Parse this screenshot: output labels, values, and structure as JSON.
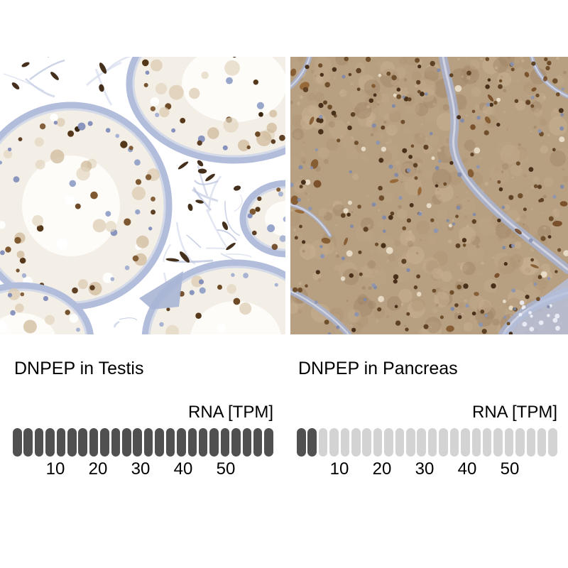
{
  "page": {
    "background": "#ffffff"
  },
  "panels": [
    {
      "id": "testis",
      "title": "DNPEP in Testis",
      "unit_label": "RNA [TPM]",
      "rna_bar": {
        "segments_total": 24,
        "segments_filled": 24,
        "ticks": [
          10,
          20,
          30,
          40,
          50
        ]
      },
      "micrograph_description": "Immunohistochemistry of testis: seminiferous tubule cross-sections with pale blue basement membranes, blue and brown-stained nuclei on a white background"
    },
    {
      "id": "pancreas",
      "title": "DNPEP in Pancreas",
      "unit_label": "RNA [TPM]",
      "rna_bar": {
        "segments_total": 24,
        "segments_filled": 2,
        "ticks": [
          10,
          20,
          30,
          40,
          50
        ]
      },
      "micrograph_description": "Immunohistochemistry of pancreas: dense exocrine tissue with moderate brown cytoplasmic staining, dark brown nuclei and pale blue connective septa"
    }
  ],
  "chart_data": [
    {
      "type": "bar",
      "style": "segmented-pill-meter",
      "title": "DNPEP in Testis",
      "value_axis_label": "RNA [TPM]",
      "x_ticks": [
        10,
        20,
        30,
        40,
        50
      ],
      "x_range": [
        0,
        60
      ],
      "segments_total": 24,
      "segments_filled": 24,
      "tpm_per_segment": 2.5,
      "estimated_value_tpm": 60,
      "filled_color": "#505050",
      "empty_color": "#d3d3d3"
    },
    {
      "type": "bar",
      "style": "segmented-pill-meter",
      "title": "DNPEP in Pancreas",
      "value_axis_label": "RNA [TPM]",
      "x_ticks": [
        10,
        20,
        30,
        40,
        50
      ],
      "x_range": [
        0,
        60
      ],
      "segments_total": 24,
      "segments_filled": 2,
      "tpm_per_segment": 2.5,
      "estimated_value_tpm": 5,
      "filled_color": "#505050",
      "empty_color": "#d3d3d3"
    }
  ],
  "colors": {
    "text": "#000000",
    "segment_filled": "#505050",
    "segment_empty": "#d3d3d3"
  },
  "tissue_palettes": {
    "testis": {
      "background": "#ffffff",
      "tubule_fill": "#f3eee6",
      "membrane_blue": "#b2bddb",
      "membrane_inner": "#ccd4e8",
      "cytoplasm": [
        "#dac9ae",
        "#cdb795",
        "#e3d5bf"
      ],
      "blue_nuclei": [
        "#8d9cc6",
        "#a3aed2",
        "#7f8cba"
      ],
      "brown_nuclei": [
        "#6e4a26",
        "#7d5830",
        "#55371a"
      ],
      "dark_cells": "#3a2510",
      "stroma_strands": [
        "#c7cfe4",
        "#d8dded",
        "#b9c3dd"
      ]
    },
    "pancreas": {
      "background": "#b79f82",
      "mottle": [
        "#c3ab8c",
        "#ae9573",
        "#bca585",
        "#a08565",
        "#cbb496"
      ],
      "septa_blue": "#a8b4d6",
      "septa_core": "#e9edf7",
      "corner_patch": "#b5c0dc",
      "brown_nuclei": [
        "#5f4123",
        "#6f4f2b",
        "#48301a"
      ],
      "blue_nuclei": [
        "#8a94b4",
        "#7d88aa"
      ],
      "strong_stain": [
        "#7b4c20",
        "#8f5a26",
        "#6b3d16"
      ],
      "bright_spots": "#f2e9d6"
    }
  }
}
